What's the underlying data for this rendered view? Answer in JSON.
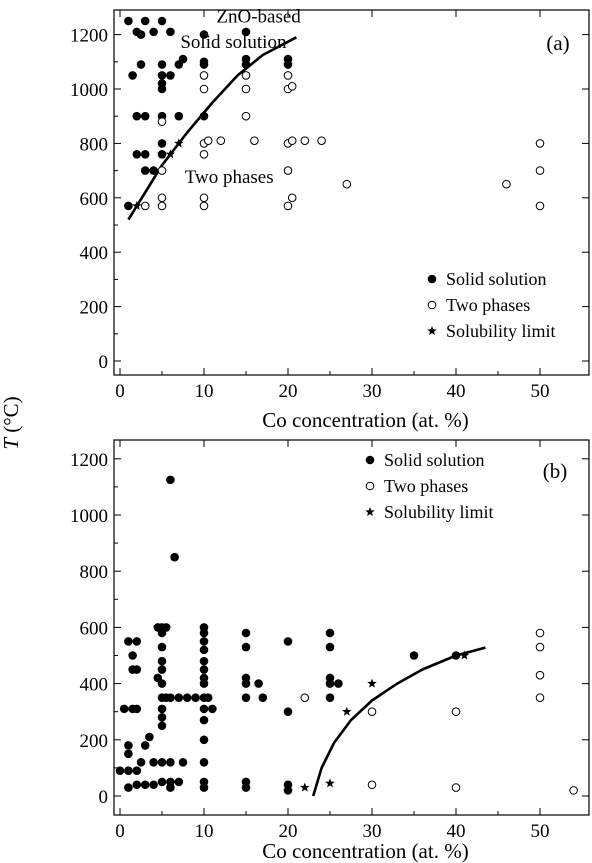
{
  "ylabel": "T (°C)",
  "chart_data": [
    {
      "type": "scatter",
      "panel_label": "(a)",
      "xlabel": "Co concentration (at. %)",
      "ylabel": "T (°C)",
      "xlim": [
        -1.5,
        55
      ],
      "ylim": [
        -40,
        1300
      ],
      "x_ticks": [
        0,
        10,
        20,
        30,
        40,
        50
      ],
      "y_ticks": [
        0,
        200,
        400,
        600,
        800,
        1000,
        1200
      ],
      "grid": false,
      "legend_position": "bottom-right",
      "annotations": [
        {
          "text": "ZnO-based",
          "x": 16.5,
          "y": 1245
        },
        {
          "text": "Solid solution",
          "x": 13.5,
          "y": 1150
        },
        {
          "text": "Two phases",
          "x": 13,
          "y": 655
        }
      ],
      "series": [
        {
          "name": "Solid solution",
          "marker": "filled-circle",
          "points": [
            [
              1,
              1250
            ],
            [
              2,
              1210
            ],
            [
              2.5,
              1200
            ],
            [
              3,
              1250
            ],
            [
              4,
              1210
            ],
            [
              5,
              1250
            ],
            [
              6,
              1210
            ],
            [
              1.5,
              1050
            ],
            [
              2.5,
              1090
            ],
            [
              5,
              1090
            ],
            [
              6,
              1050
            ],
            [
              7,
              1090
            ],
            [
              7.5,
              1110
            ],
            [
              5,
              1050
            ],
            [
              5,
              1020
            ],
            [
              5,
              1000
            ],
            [
              2,
              900
            ],
            [
              3,
              900
            ],
            [
              5,
              900
            ],
            [
              7,
              900
            ],
            [
              10,
              1200
            ],
            [
              10,
              1100
            ],
            [
              10,
              1090
            ],
            [
              10,
              900
            ],
            [
              15,
              1210
            ],
            [
              15,
              1110
            ],
            [
              15,
              1090
            ],
            [
              20,
              1110
            ],
            [
              20,
              1090
            ],
            [
              2,
              760
            ],
            [
              3,
              760
            ],
            [
              5,
              800
            ],
            [
              5,
              760
            ],
            [
              1,
              570
            ],
            [
              3,
              700
            ],
            [
              4,
              700
            ]
          ]
        },
        {
          "name": "Two phases",
          "marker": "open-circle",
          "points": [
            [
              3,
              570
            ],
            [
              5,
              570
            ],
            [
              5,
              600
            ],
            [
              10,
              570
            ],
            [
              10,
              600
            ],
            [
              5,
              700
            ],
            [
              5,
              880
            ],
            [
              10,
              760
            ],
            [
              10,
              800
            ],
            [
              10.5,
              810
            ],
            [
              12,
              810
            ],
            [
              16,
              810
            ],
            [
              20,
              800
            ],
            [
              20.5,
              810
            ],
            [
              22,
              810
            ],
            [
              24,
              810
            ],
            [
              10,
              1050
            ],
            [
              10,
              1000
            ],
            [
              15,
              1050
            ],
            [
              15,
              1000
            ],
            [
              15,
              900
            ],
            [
              20,
              1050
            ],
            [
              20,
              1000
            ],
            [
              20.5,
              1010
            ],
            [
              20,
              700
            ],
            [
              20.5,
              600
            ],
            [
              20,
              570
            ],
            [
              27,
              650
            ],
            [
              46,
              650
            ],
            [
              50,
              800
            ],
            [
              50,
              700
            ],
            [
              50,
              570
            ]
          ]
        },
        {
          "name": "Solubility limit",
          "marker": "star",
          "points": [
            [
              2,
              570
            ],
            [
              4,
              700
            ],
            [
              5,
              760
            ],
            [
              6,
              760
            ],
            [
              7,
              800
            ]
          ]
        }
      ],
      "fit_curve": [
        [
          1,
          520
        ],
        [
          3,
          620
        ],
        [
          5,
          720
        ],
        [
          8,
          840
        ],
        [
          11,
          950
        ],
        [
          14,
          1050
        ],
        [
          17,
          1125
        ],
        [
          21,
          1190
        ]
      ]
    },
    {
      "type": "scatter",
      "panel_label": "(b)",
      "xlabel": "Co concentration (at. %)",
      "ylabel": "T (°C)",
      "xlim": [
        -1,
        55
      ],
      "ylim": [
        -30,
        1300
      ],
      "x_ticks": [
        0,
        10,
        20,
        30,
        40,
        50
      ],
      "y_ticks": [
        0,
        200,
        400,
        600,
        800,
        1000,
        1200
      ],
      "grid": false,
      "legend_position": "top-right",
      "series": [
        {
          "name": "Solid solution",
          "marker": "filled-circle",
          "points": [
            [
              6,
              1125
            ],
            [
              6.5,
              850
            ],
            [
              0,
              90
            ],
            [
              0.5,
              310
            ],
            [
              1,
              550
            ],
            [
              1,
              180
            ],
            [
              1,
              150
            ],
            [
              1,
              90
            ],
            [
              1,
              30
            ],
            [
              1.5,
              310
            ],
            [
              1.5,
              450
            ],
            [
              1.5,
              500
            ],
            [
              2,
              310
            ],
            [
              2,
              450
            ],
            [
              2,
              550
            ],
            [
              2,
              90
            ],
            [
              2,
              40
            ],
            [
              2.5,
              120
            ],
            [
              3,
              40
            ],
            [
              3,
              180
            ],
            [
              3.5,
              210
            ],
            [
              4,
              40
            ],
            [
              4,
              120
            ],
            [
              4.5,
              420
            ],
            [
              4.5,
              600
            ],
            [
              5,
              600
            ],
            [
              5,
              580
            ],
            [
              5,
              530
            ],
            [
              5,
              480
            ],
            [
              5,
              450
            ],
            [
              5,
              400
            ],
            [
              5,
              350
            ],
            [
              5,
              310
            ],
            [
              5,
              280
            ],
            [
              5,
              250
            ],
            [
              5,
              120
            ],
            [
              5,
              50
            ],
            [
              5.5,
              600
            ],
            [
              5.5,
              350
            ],
            [
              6,
              350
            ],
            [
              6,
              50
            ],
            [
              6,
              30
            ],
            [
              6,
              120
            ],
            [
              7,
              350
            ],
            [
              7,
              50
            ],
            [
              7.5,
              120
            ],
            [
              8,
              350
            ],
            [
              9,
              350
            ],
            [
              10,
              600
            ],
            [
              10,
              580
            ],
            [
              10,
              550
            ],
            [
              10,
              520
            ],
            [
              10,
              480
            ],
            [
              10,
              450
            ],
            [
              10,
              420
            ],
            [
              10,
              400
            ],
            [
              10,
              350
            ],
            [
              10,
              310
            ],
            [
              10,
              270
            ],
            [
              10,
              200
            ],
            [
              10,
              120
            ],
            [
              10,
              50
            ],
            [
              10,
              30
            ],
            [
              10.5,
              350
            ],
            [
              11,
              310
            ],
            [
              15,
              580
            ],
            [
              15,
              530
            ],
            [
              15,
              420
            ],
            [
              15,
              400
            ],
            [
              15,
              350
            ],
            [
              15,
              50
            ],
            [
              15,
              30
            ],
            [
              16.5,
              400
            ],
            [
              17,
              350
            ],
            [
              20,
              550
            ],
            [
              20,
              300
            ],
            [
              20,
              40
            ],
            [
              20,
              20
            ],
            [
              25,
              580
            ],
            [
              25,
              530
            ],
            [
              25,
              420
            ],
            [
              25,
              400
            ],
            [
              25,
              350
            ],
            [
              26,
              400
            ],
            [
              35,
              500
            ],
            [
              40,
              500
            ]
          ]
        },
        {
          "name": "Two phases",
          "marker": "open-circle",
          "points": [
            [
              22,
              350
            ],
            [
              30,
              300
            ],
            [
              30,
              40
            ],
            [
              40,
              300
            ],
            [
              40,
              30
            ],
            [
              50,
              580
            ],
            [
              50,
              530
            ],
            [
              50,
              430
            ],
            [
              50,
              350
            ],
            [
              54,
              20
            ]
          ]
        },
        {
          "name": "Solubility limit",
          "marker": "star",
          "points": [
            [
              22,
              30
            ],
            [
              25,
              45
            ],
            [
              27,
              300
            ],
            [
              30,
              400
            ],
            [
              41,
              500
            ]
          ]
        }
      ],
      "fit_curve": [
        [
          23,
          0
        ],
        [
          24,
          100
        ],
        [
          25.5,
          190
        ],
        [
          27.5,
          270
        ],
        [
          30,
          340
        ],
        [
          33,
          400
        ],
        [
          36,
          450
        ],
        [
          40,
          500
        ],
        [
          43.5,
          528
        ]
      ]
    }
  ]
}
